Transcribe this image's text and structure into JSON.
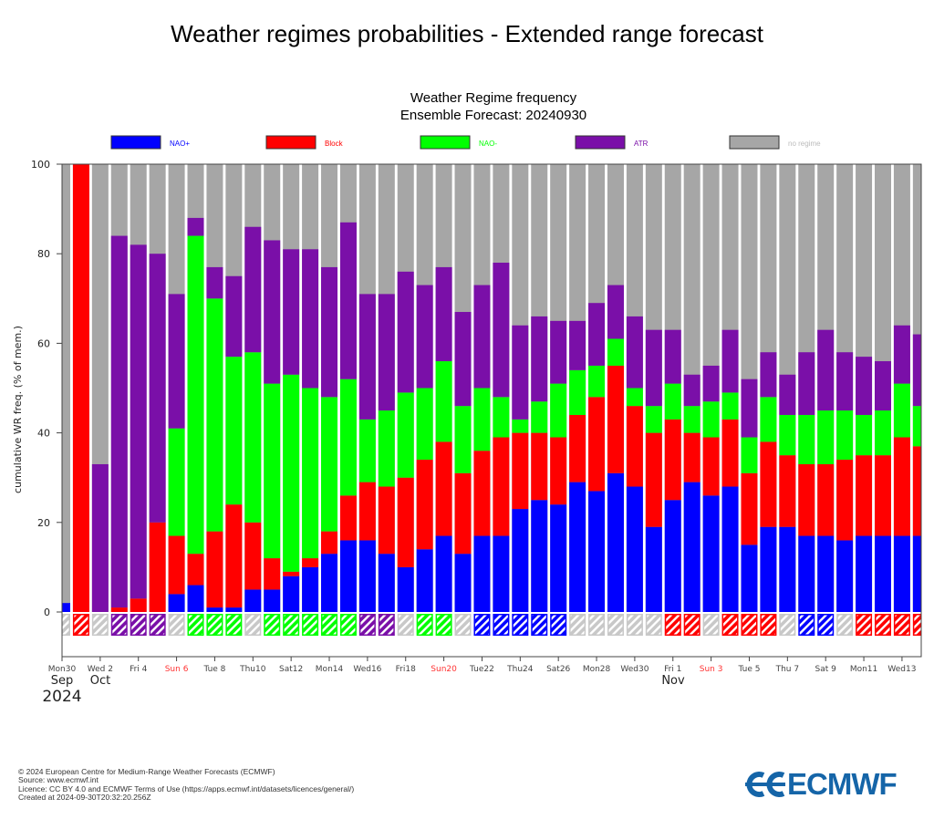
{
  "page_title": "Weather regimes probabilities - Extended range forecast",
  "chart_data": {
    "type": "bar",
    "stacked": true,
    "title": "Weather Regime frequency",
    "subtitle": "Ensemble Forecast: 20240930",
    "ylabel": "cumulative WR freq. (% of mem.)",
    "xlabel": "",
    "ylim": [
      -10,
      100
    ],
    "yticks": [
      0,
      20,
      40,
      60,
      80,
      100
    ],
    "grid": false,
    "legend_position": "top",
    "dates": [
      "2024-09-30",
      "2024-10-01",
      "2024-10-02",
      "2024-10-03",
      "2024-10-04",
      "2024-10-05",
      "2024-10-06",
      "2024-10-07",
      "2024-10-08",
      "2024-10-09",
      "2024-10-10",
      "2024-10-11",
      "2024-10-12",
      "2024-10-13",
      "2024-10-14",
      "2024-10-15",
      "2024-10-16",
      "2024-10-17",
      "2024-10-18",
      "2024-10-19",
      "2024-10-20",
      "2024-10-21",
      "2024-10-22",
      "2024-10-23",
      "2024-10-24",
      "2024-10-25",
      "2024-10-26",
      "2024-10-27",
      "2024-10-28",
      "2024-10-29",
      "2024-10-30",
      "2024-10-31",
      "2024-11-01",
      "2024-11-02",
      "2024-11-03",
      "2024-11-04",
      "2024-11-05",
      "2024-11-06",
      "2024-11-07",
      "2024-11-08",
      "2024-11-09",
      "2024-11-10",
      "2024-11-11",
      "2024-11-12",
      "2024-11-13",
      "2024-11-14"
    ],
    "series": [
      {
        "name": "NAO+",
        "color": "#0000ff",
        "values": [
          2,
          0,
          0,
          0,
          0,
          0,
          4,
          6,
          1,
          1,
          5,
          5,
          8,
          10,
          13,
          16,
          16,
          13,
          10,
          14,
          17,
          13,
          17,
          17,
          23,
          25,
          24,
          29,
          27,
          31,
          28,
          19,
          25,
          29,
          26,
          28,
          15,
          19,
          19,
          17,
          17,
          16,
          17,
          17,
          17,
          17
        ]
      },
      {
        "name": "Block",
        "color": "#ff0000",
        "values": [
          0,
          100,
          0,
          1,
          3,
          20,
          13,
          7,
          17,
          23,
          15,
          7,
          1,
          2,
          5,
          10,
          13,
          15,
          20,
          20,
          21,
          18,
          19,
          22,
          17,
          15,
          15,
          15,
          21,
          24,
          18,
          21,
          18,
          11,
          13,
          15,
          16,
          19,
          16,
          16,
          16,
          18,
          18,
          18,
          22,
          20
        ]
      },
      {
        "name": "NAO-",
        "color": "#00ff00",
        "values": [
          0,
          0,
          0,
          0,
          0,
          0,
          24,
          71,
          52,
          33,
          38,
          39,
          44,
          38,
          30,
          26,
          14,
          17,
          19,
          16,
          18,
          15,
          14,
          9,
          3,
          7,
          12,
          10,
          7,
          6,
          4,
          6,
          8,
          6,
          8,
          6,
          8,
          10,
          9,
          11,
          12,
          11,
          9,
          10,
          12,
          9
        ]
      },
      {
        "name": "ATR",
        "color": "#7a0fa8",
        "values": [
          0,
          0,
          33,
          83,
          79,
          60,
          30,
          4,
          7,
          18,
          28,
          32,
          28,
          31,
          29,
          35,
          28,
          26,
          27,
          23,
          21,
          21,
          23,
          30,
          21,
          19,
          14,
          11,
          14,
          12,
          16,
          17,
          12,
          7,
          8,
          14,
          13,
          10,
          9,
          14,
          18,
          13,
          13,
          11,
          13,
          16
        ]
      },
      {
        "name": "no regime",
        "color": "#a6a6a6"
      }
    ],
    "dominant_regime": [
      "no regime",
      "Block",
      "no regime",
      "ATR",
      "ATR",
      "ATR",
      "no regime",
      "NAO-",
      "NAO-",
      "NAO-",
      "no regime",
      "NAO-",
      "NAO-",
      "NAO-",
      "NAO-",
      "NAO-",
      "ATR",
      "ATR",
      "no regime",
      "NAO-",
      "NAO-",
      "no regime",
      "NAO+",
      "NAO+",
      "NAO+",
      "NAO+",
      "NAO+",
      "no regime",
      "no regime",
      "no regime",
      "no regime",
      "no regime",
      "Block",
      "Block",
      "no regime",
      "Block",
      "Block",
      "Block",
      "no regime",
      "NAO+",
      "NAO+",
      "no regime",
      "Block",
      "Block",
      "Block",
      "Block"
    ],
    "xtick_labels": [
      {
        "label": "Mon30"
      },
      {
        "label": "Wed 2"
      },
      {
        "label": "Fri 4"
      },
      {
        "label": "Sun 6",
        "sunday": true
      },
      {
        "label": "Tue 8"
      },
      {
        "label": "Thu10"
      },
      {
        "label": "Sat12"
      },
      {
        "label": "Mon14"
      },
      {
        "label": "Wed16"
      },
      {
        "label": "Fri18"
      },
      {
        "label": "Sun20",
        "sunday": true
      },
      {
        "label": "Tue22"
      },
      {
        "label": "Thu24"
      },
      {
        "label": "Sat26"
      },
      {
        "label": "Mon28"
      },
      {
        "label": "Wed30"
      },
      {
        "label": "Fri 1"
      },
      {
        "label": "Sun 3",
        "sunday": true
      },
      {
        "label": "Tue 5"
      },
      {
        "label": "Thu 7"
      },
      {
        "label": "Sat 9"
      },
      {
        "label": "Mon11"
      },
      {
        "label": "Wed13"
      }
    ],
    "month_labels": {
      "sep": "Sep",
      "oct": "Oct",
      "nov": "Nov",
      "year": "2024"
    },
    "sunday_color": "#ff3333"
  },
  "footer": {
    "line1": "© 2024 European Centre for Medium-Range Weather Forecasts (ECMWF)",
    "line2": "Source: www.ecmwf.int",
    "line3": "Licence: CC BY 4.0 and ECMWF Terms of Use (https://apps.ecmwf.int/datasets/licences/general/)",
    "line4": "Created at 2024-09-30T20:32:20.256Z"
  },
  "logo": {
    "text": "ECMWF",
    "color": "#1565a8"
  }
}
